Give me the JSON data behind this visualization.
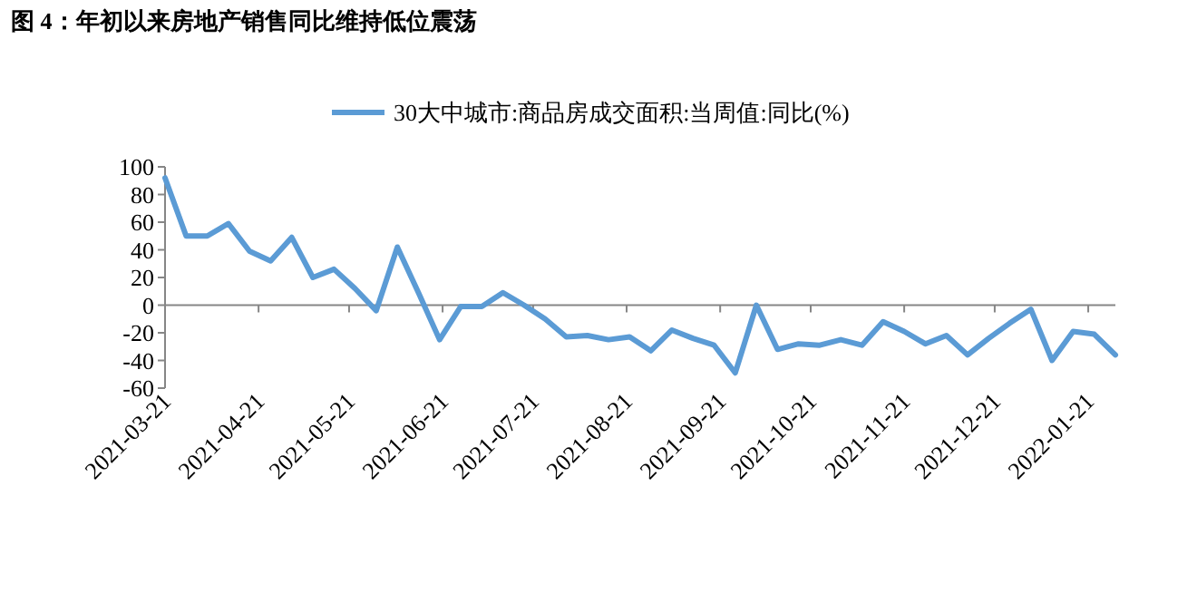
{
  "chart_data": {
    "type": "line",
    "title": "图 4：年初以来房地产销售同比维持低位震荡",
    "x": [
      "2021-03-21",
      "2021-03-28",
      "2021-04-04",
      "2021-04-11",
      "2021-04-18",
      "2021-04-25",
      "2021-05-02",
      "2021-05-09",
      "2021-05-16",
      "2021-05-23",
      "2021-05-30",
      "2021-06-06",
      "2021-06-13",
      "2021-06-20",
      "2021-06-27",
      "2021-07-04",
      "2021-07-11",
      "2021-07-18",
      "2021-07-25",
      "2021-08-01",
      "2021-08-08",
      "2021-08-15",
      "2021-08-22",
      "2021-08-29",
      "2021-09-05",
      "2021-09-12",
      "2021-09-19",
      "2021-09-26",
      "2021-10-03",
      "2021-10-10",
      "2021-10-17",
      "2021-10-24",
      "2021-10-31",
      "2021-11-07",
      "2021-11-14",
      "2021-11-21",
      "2021-11-28",
      "2021-12-05",
      "2021-12-12",
      "2021-12-19",
      "2021-12-26",
      "2022-01-02",
      "2022-01-09",
      "2022-01-16",
      "2022-01-23",
      "2022-01-30"
    ],
    "series": [
      {
        "name": "30大中城市:商品房成交面积:当周值:同比(%)",
        "color": "#5b9bd5",
        "values": [
          92,
          50,
          50,
          59,
          39,
          32,
          49,
          20,
          26,
          12,
          -4,
          42,
          9,
          -25,
          -1,
          -1,
          9,
          0,
          -10,
          -23,
          -22,
          -25,
          -23,
          -33,
          -18,
          -24,
          -29,
          -49,
          0,
          -32,
          -28,
          -29,
          -25,
          -29,
          -12,
          -19,
          -28,
          -22,
          -36,
          -24,
          -13,
          -3,
          -40,
          -19,
          -21,
          -36
        ]
      }
    ],
    "xlim": [
      "2021-03-21",
      "2022-01-30"
    ],
    "xticks": [
      "2021-03-21",
      "2021-04-21",
      "2021-05-21",
      "2021-06-21",
      "2021-07-21",
      "2021-08-21",
      "2021-09-21",
      "2021-10-21",
      "2021-11-21",
      "2021-12-21",
      "2022-01-21"
    ],
    "ylim": [
      -60,
      100
    ],
    "yticks": [
      -60,
      -40,
      -20,
      0,
      20,
      40,
      60,
      80,
      100
    ],
    "legend": "top",
    "marker": "none",
    "line_style": "solid"
  }
}
